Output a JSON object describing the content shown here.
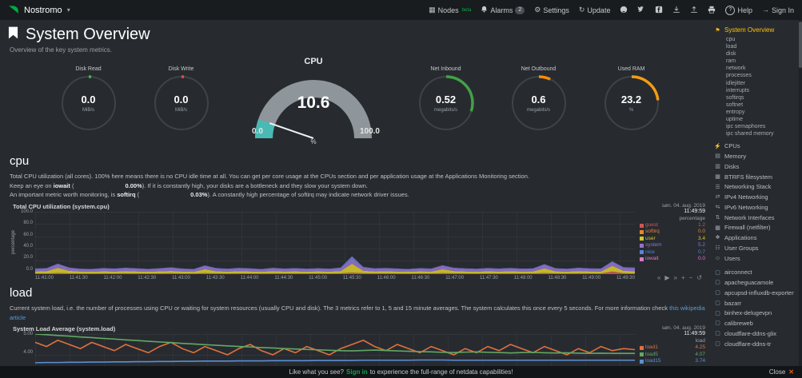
{
  "header": {
    "hostname": "Nostromo",
    "nodes_label": "Nodes",
    "nodes_badge": "beta",
    "alarms_label": "Alarms",
    "alarms_badge": "2",
    "settings_label": "Settings",
    "update_label": "Update",
    "help_label": "Help",
    "signin_label": "Sign In",
    "gear_glyph": "⚙",
    "update_glyph": "↻",
    "caret_glyph": "▾",
    "nodes_glyph": "▦",
    "help_glyph": "?",
    "signin_glyph": "→"
  },
  "page": {
    "title": "System Overview",
    "subtitle": "Overview of the key system metrics."
  },
  "overview": {
    "left_gauges": [
      {
        "id": "disk-read-gauge",
        "title": "Disk Read",
        "value": "0.0",
        "unit": "MiB/s",
        "fraction": 0.015,
        "color": "#4caf50"
      },
      {
        "id": "disk-write-gauge",
        "title": "Disk Write",
        "value": "0.0",
        "unit": "MiB/s",
        "fraction": 0.015,
        "color": "#e74c3c"
      }
    ],
    "cpu_gauge": {
      "title": "CPU",
      "value": "10.6",
      "min": "0.0",
      "max": "100.0",
      "unit": "%",
      "fraction": 0.106,
      "color": "#49b9b4",
      "track": "#8f969b"
    },
    "right_gauges": [
      {
        "id": "net-inbound-gauge",
        "title": "Net Inbound",
        "value": "0.52",
        "unit": "megabits/s",
        "fraction": 0.3,
        "color": "#43a047"
      },
      {
        "id": "net-outbound-gauge",
        "title": "Net Outbound",
        "value": "0.6",
        "unit": "megabits/s",
        "fraction": 0.07,
        "color": "#fb8c00"
      },
      {
        "id": "used-ram-gauge",
        "title": "Used RAM",
        "value": "23.2",
        "unit": "%",
        "fraction": 0.232,
        "color": "#f39c12"
      }
    ]
  },
  "cpu_section": {
    "heading": "cpu",
    "p1": "Total CPU utilization (all cores). 100% here means there is no CPU idle time at all. You can get per core usage at the CPUs section and per application usage at the Applications Monitoring section.",
    "p2_pre": "Keep an eye on ",
    "p2_term": "iowait",
    "p2_mid": " (",
    "p2_value": "0.00%",
    "p2_post": "). If it is constantly high, your disks are a bottleneck and they slow your system down.",
    "p3_pre": "An important metric worth monitoring, is ",
    "p3_term": "softirq",
    "p3_mid": " (",
    "p3_value": "0.03%",
    "p3_post": "). A constantly high percentage of softirq may indicate network driver issues."
  },
  "load_section": {
    "heading": "load",
    "p_pre": "Current system load, i.e. the number of processes using CPU or waiting for system resources (usually CPU and disk). The 3 metrics refer to 1, 5 and 15 minute averages. The system calculates this once every 5 seconds. For more information check ",
    "p_link": "this wikipedia article"
  },
  "toolbar_icons": [
    {
      "name": "pan-left-icon",
      "glyph": "«"
    },
    {
      "name": "play-icon",
      "glyph": "▶"
    },
    {
      "name": "pan-right-icon",
      "glyph": "»"
    },
    {
      "name": "zoom-in-icon",
      "glyph": "+"
    },
    {
      "name": "zoom-out-icon",
      "glyph": "−"
    },
    {
      "name": "reset-zoom-icon",
      "glyph": "↺"
    }
  ],
  "charts": [
    {
      "id": "cpu",
      "type": "stacked-area",
      "title": "Total CPU utilization (system.cpu)",
      "date": "søn. 04. aug. 2019",
      "time": "11:49:59",
      "unit": "percentage",
      "ylabel": "percentage",
      "ylim": [
        0,
        100
      ],
      "yticks": [
        "100.0",
        "80.0",
        "60.0",
        "40.0",
        "20.0",
        "0.0"
      ],
      "xticks": [
        "11:41:00",
        "11:41:30",
        "11:42:00",
        "11:42:30",
        "11:43:00",
        "11:43:30",
        "11:44:00",
        "11:44:30",
        "11:45:00",
        "11:45:30",
        "11:46:00",
        "11:46:30",
        "11:47:00",
        "11:47:30",
        "11:48:00",
        "11:48:30",
        "11:49:00",
        "11:49:30"
      ],
      "series": [
        {
          "name": "guest",
          "value": "1.2",
          "color": "#d05454",
          "values": [
            1.0,
            1.1,
            1.6,
            1.2,
            1.0,
            0.9,
            1.1,
            1.0,
            1.2,
            1.1,
            1.0,
            1.1,
            1.3,
            1.0,
            0.9,
            1.4,
            1.1,
            1.0,
            1.2,
            1.1,
            0.9,
            1.2,
            1.0,
            1.1,
            1.0,
            1.1,
            1.0,
            1.2,
            2.1,
            1.3,
            1.1,
            1.2,
            1.0,
            0.9,
            1.1,
            1.0,
            1.4,
            1.2,
            1.1,
            1.0,
            1.1,
            1.0,
            1.2,
            1.0,
            1.1,
            1.5,
            1.1,
            1.0,
            1.2,
            1.1,
            1.0,
            3.9,
            1.4,
            1.2
          ]
        },
        {
          "name": "softirq",
          "value": "0.0",
          "color": "#e8842c",
          "values": [
            0.1,
            0.0,
            0.2,
            0.1,
            0.0,
            0.1,
            0.1,
            0.0,
            0.1,
            0.1,
            0.0,
            0.1,
            0.1,
            0.0,
            0.1,
            0.2,
            0.1,
            0.0,
            0.1,
            0.1,
            0.0,
            0.1,
            0.1,
            0.0,
            0.1,
            0.1,
            0.0,
            0.1,
            0.3,
            0.1,
            0.1,
            0.0,
            0.1,
            0.1,
            0.0,
            0.1,
            0.2,
            0.1,
            0.1,
            0.0,
            0.1,
            0.1,
            0.0,
            0.1,
            0.1,
            0.2,
            0.1,
            0.0,
            0.1,
            0.1,
            0.0,
            0.2,
            0.1,
            0.0
          ]
        },
        {
          "name": "user",
          "value": "3.4",
          "color": "#d6c52e",
          "values": [
            3.2,
            3.5,
            8.1,
            4.0,
            3.1,
            2.8,
            3.4,
            3.0,
            3.6,
            3.2,
            2.9,
            3.3,
            3.8,
            3.1,
            2.7,
            6.2,
            3.4,
            3.0,
            3.5,
            3.2,
            2.8,
            3.6,
            3.1,
            3.4,
            2.9,
            3.3,
            3.0,
            3.7,
            14.2,
            4.1,
            3.2,
            3.5,
            3.0,
            2.8,
            3.4,
            3.1,
            6.3,
            3.6,
            3.2,
            2.9,
            3.4,
            3.1,
            3.5,
            3.0,
            3.2,
            7.4,
            3.3,
            3.0,
            3.6,
            3.2,
            3.1,
            9.2,
            3.8,
            3.4
          ]
        },
        {
          "name": "system",
          "value": "5.2",
          "color": "#9271cf",
          "values": [
            4.1,
            4.5,
            6.3,
            4.8,
            4.2,
            4.0,
            4.6,
            4.3,
            4.8,
            4.4,
            4.1,
            4.5,
            5.0,
            4.3,
            3.9,
            5.5,
            4.6,
            4.2,
            4.7,
            4.4,
            4.0,
            4.8,
            4.3,
            4.6,
            4.1,
            4.5,
            4.2,
            4.9,
            8.3,
            5.2,
            4.4,
            4.7,
            4.2,
            4.0,
            4.6,
            4.3,
            5.5,
            4.8,
            4.4,
            4.1,
            4.6,
            4.3,
            4.7,
            4.2,
            4.4,
            6.1,
            4.5,
            4.2,
            4.8,
            4.4,
            4.3,
            6.4,
            5.0,
            5.2
          ]
        },
        {
          "name": "nice",
          "value": "0.7",
          "color": "#5584d7",
          "values": [
            0.5,
            0.5,
            0.6,
            0.5,
            0.4,
            0.5,
            0.5,
            0.6,
            0.5,
            0.5,
            0.4,
            0.5,
            0.6,
            0.5,
            0.5,
            0.7,
            0.5,
            0.5,
            0.6,
            0.5,
            0.5,
            0.4,
            0.5,
            0.5,
            0.6,
            0.5,
            0.5,
            0.6,
            3.2,
            0.8,
            0.5,
            0.5,
            0.6,
            0.5,
            0.5,
            0.4,
            0.7,
            0.5,
            0.5,
            0.6,
            0.5,
            0.5,
            0.6,
            0.5,
            0.5,
            0.8,
            0.5,
            0.5,
            0.6,
            0.5,
            0.5,
            0.9,
            0.7,
            0.7
          ]
        },
        {
          "name": "iowait",
          "value": "0.0",
          "color": "#dd77c9",
          "values": [
            0.0,
            0.0,
            0.1,
            0.0,
            0.0,
            0.0,
            0.0,
            0.0,
            0.0,
            0.0,
            0.0,
            0.0,
            0.1,
            0.0,
            0.0,
            0.0,
            0.0,
            0.0,
            0.0,
            0.0,
            0.0,
            0.0,
            0.0,
            0.0,
            0.0,
            0.0,
            0.0,
            0.0,
            0.4,
            0.0,
            0.0,
            0.0,
            0.0,
            0.0,
            0.0,
            0.0,
            0.1,
            0.0,
            0.0,
            0.0,
            0.0,
            0.0,
            0.0,
            0.0,
            0.0,
            0.1,
            0.0,
            0.0,
            0.0,
            0.0,
            0.0,
            0.1,
            0.0,
            0.0
          ]
        }
      ]
    },
    {
      "id": "load",
      "type": "line",
      "title": "System Load Average (system.load)",
      "date": "søn. 04. aug. 2019",
      "time": "11:49:59",
      "unit": "load",
      "ylabel": "load",
      "ylim": [
        3,
        5
      ],
      "yticks": [
        "5.00",
        "4.00",
        "3.00"
      ],
      "xticks": [],
      "series": [
        {
          "name": "load1",
          "value": "4.25",
          "color": "#e0713d",
          "values": [
            4.6,
            4.4,
            4.7,
            4.5,
            4.3,
            4.6,
            4.4,
            4.2,
            4.5,
            4.3,
            4.1,
            4.4,
            4.6,
            4.3,
            4.1,
            4.4,
            4.2,
            4.0,
            4.3,
            4.5,
            4.2,
            4.0,
            4.3,
            4.1,
            4.4,
            4.2,
            4.0,
            4.3,
            4.5,
            4.7,
            4.4,
            4.2,
            4.5,
            4.3,
            4.1,
            4.4,
            4.2,
            4.0,
            4.3,
            4.1,
            4.4,
            4.2,
            4.5,
            4.3,
            4.1,
            4.4,
            4.2,
            4.0,
            4.3,
            4.1,
            4.4,
            4.2,
            4.3,
            4.25
          ]
        },
        {
          "name": "load5",
          "value": "4.07",
          "color": "#63a863",
          "values": [
            5.0,
            4.97,
            4.93,
            4.9,
            4.86,
            4.83,
            4.79,
            4.76,
            4.72,
            4.69,
            4.65,
            4.62,
            4.59,
            4.55,
            4.52,
            4.49,
            4.46,
            4.43,
            4.4,
            4.38,
            4.35,
            4.33,
            4.3,
            4.28,
            4.26,
            4.24,
            4.22,
            4.2,
            4.19,
            4.21,
            4.23,
            4.21,
            4.19,
            4.17,
            4.15,
            4.14,
            4.12,
            4.11,
            4.13,
            4.14,
            4.12,
            4.11,
            4.09,
            4.11,
            4.12,
            4.1,
            4.09,
            4.1,
            4.08,
            4.07,
            4.08,
            4.07,
            4.07,
            4.07
          ]
        },
        {
          "name": "load15",
          "value": "3.74",
          "color": "#5b8fd4",
          "values": [
            3.62,
            3.63,
            3.63,
            3.64,
            3.64,
            3.65,
            3.65,
            3.66,
            3.66,
            3.67,
            3.67,
            3.68,
            3.68,
            3.69,
            3.69,
            3.7,
            3.7,
            3.7,
            3.71,
            3.71,
            3.71,
            3.72,
            3.72,
            3.72,
            3.72,
            3.73,
            3.73,
            3.73,
            3.73,
            3.74,
            3.74,
            3.74,
            3.74,
            3.74,
            3.75,
            3.75,
            3.75,
            3.74,
            3.74,
            3.74,
            3.74,
            3.74,
            3.74,
            3.74,
            3.74,
            3.74,
            3.74,
            3.74,
            3.74,
            3.74,
            3.74,
            3.74,
            3.74,
            3.74
          ]
        }
      ]
    }
  ],
  "sidebar": {
    "active": {
      "glyph": "⚑",
      "label": "System Overview"
    },
    "sub_items": [
      "cpu",
      "load",
      "disk",
      "ram",
      "network",
      "processes",
      "idlejitter",
      "interrupts",
      "softirqs",
      "softnet",
      "entropy",
      "uptime",
      "ipc semaphores",
      "ipc shared memory"
    ],
    "menu_items": [
      {
        "icon": "cpus-icon",
        "glyph": "⚡",
        "label": "CPUs"
      },
      {
        "icon": "memory-icon",
        "glyph": "▤",
        "label": "Memory"
      },
      {
        "icon": "disks-icon",
        "glyph": "▥",
        "label": "Disks"
      },
      {
        "icon": "btrfs-icon",
        "glyph": "▦",
        "label": "BTRFS filesystem"
      },
      {
        "icon": "network-stack-icon",
        "glyph": "☰",
        "label": "Networking Stack"
      },
      {
        "icon": "ipv4-icon",
        "glyph": "⇄",
        "label": "IPv4 Networking"
      },
      {
        "icon": "ipv6-icon",
        "glyph": "⇆",
        "label": "IPv6 Networking"
      },
      {
        "icon": "interfaces-icon",
        "glyph": "⇅",
        "label": "Network Interfaces"
      },
      {
        "icon": "firewall-icon",
        "glyph": "▩",
        "label": "Firewall (netfilter)"
      },
      {
        "icon": "applications-icon",
        "glyph": "❖",
        "label": "Applications"
      },
      {
        "icon": "user-groups-icon",
        "glyph": "☷",
        "label": "User Groups"
      },
      {
        "icon": "users-icon",
        "glyph": "☺",
        "label": "Users"
      }
    ],
    "container_items": [
      {
        "glyph": "▢",
        "label": "airconnect"
      },
      {
        "glyph": "▢",
        "label": "apacheguacamole"
      },
      {
        "glyph": "▢",
        "label": "apcupsd-influxdb-exporter"
      },
      {
        "glyph": "▢",
        "label": "bazarr"
      },
      {
        "glyph": "▢",
        "label": "binhex-delugevpn"
      },
      {
        "glyph": "▢",
        "label": "calibreweb"
      },
      {
        "glyph": "▢",
        "label": "cloudflare-ddns-glix"
      },
      {
        "glyph": "▢",
        "label": "cloudflare-ddns-tr"
      }
    ]
  },
  "footer": {
    "message_pre": "Like what you see?",
    "signin": "Sign in",
    "message_post": "to experience the full-range of netdata capabilities!",
    "close": "Close",
    "close_icon": "✕"
  }
}
